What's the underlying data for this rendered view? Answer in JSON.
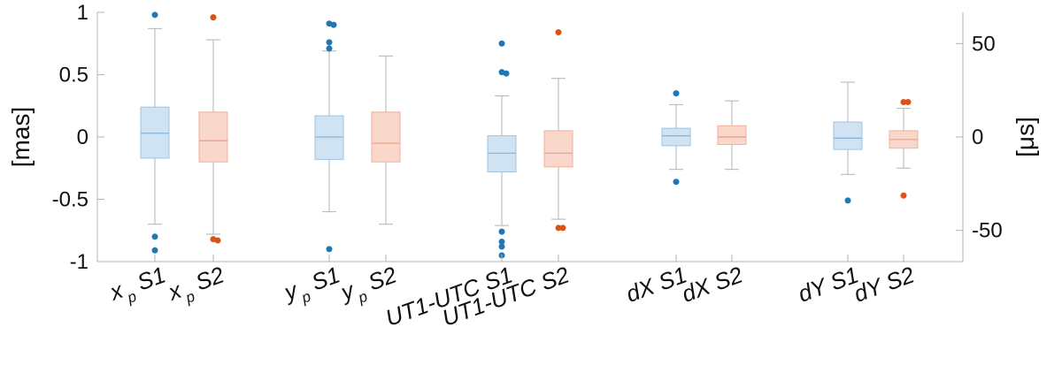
{
  "chart_data": {
    "type": "box",
    "ylabel_left": "[mas]",
    "ylabel_right": "[μs]",
    "ylim_left": [
      -1,
      1
    ],
    "ylim_right": [
      -66.7,
      66.7
    ],
    "yticks_left": [
      "1",
      "0.5",
      "0",
      "-0.5",
      "-1"
    ],
    "yticks_right": [
      "50",
      "0",
      "-50"
    ],
    "grid": false,
    "categories": [
      {
        "main": "x",
        "sub": "p",
        "tail": " S1"
      },
      {
        "main": "x",
        "sub": "p",
        "tail": " S2"
      },
      {
        "main": "y",
        "sub": "p",
        "tail": " S1"
      },
      {
        "main": "y",
        "sub": "p",
        "tail": " S2"
      },
      {
        "main": "UT1-UTC S1",
        "sub": "",
        "tail": ""
      },
      {
        "main": "UT1-UTC S2",
        "sub": "",
        "tail": ""
      },
      {
        "main": "dX S1",
        "sub": "",
        "tail": ""
      },
      {
        "main": "dX S2",
        "sub": "",
        "tail": ""
      },
      {
        "main": "dY S1",
        "sub": "",
        "tail": ""
      },
      {
        "main": "dY S2",
        "sub": "",
        "tail": ""
      }
    ],
    "colors": {
      "S1_fill": "#cfe3f3",
      "S1_edge": "#9ec3e2",
      "S1_median": "#86b4da",
      "S1_outlier": "#1f77b4",
      "S2_fill": "#f9d8cb",
      "S2_edge": "#f0b29b",
      "S2_median": "#eb9c80",
      "S2_outlier": "#d95319",
      "whisker": "#b3b3b3",
      "axis": "#b3b3b3"
    },
    "boxes": [
      {
        "series": "S1",
        "q1": -0.17,
        "median": 0.03,
        "q3": 0.24,
        "whisker_low": -0.7,
        "whisker_high": 0.87,
        "outliers": [
          0.98,
          -0.8,
          -0.91
        ]
      },
      {
        "series": "S2",
        "q1": -0.2,
        "median": -0.03,
        "q3": 0.2,
        "whisker_low": -0.78,
        "whisker_high": 0.78,
        "outliers": [
          0.96,
          -0.82,
          -0.83
        ]
      },
      {
        "series": "S1",
        "q1": -0.18,
        "median": 0.0,
        "q3": 0.17,
        "whisker_low": -0.6,
        "whisker_high": 0.69,
        "outliers": [
          0.91,
          0.9,
          0.76,
          0.71,
          -0.9
        ]
      },
      {
        "series": "S2",
        "q1": -0.2,
        "median": -0.05,
        "q3": 0.2,
        "whisker_low": -0.7,
        "whisker_high": 0.65,
        "outliers": []
      },
      {
        "series": "S1",
        "q1": -0.28,
        "median": -0.13,
        "q3": 0.01,
        "whisker_low": -0.71,
        "whisker_high": 0.33,
        "outliers": [
          0.75,
          0.52,
          0.51,
          -0.76,
          -0.84,
          -0.88,
          -0.95
        ]
      },
      {
        "series": "S2",
        "q1": -0.24,
        "median": -0.13,
        "q3": 0.05,
        "whisker_low": -0.66,
        "whisker_high": 0.47,
        "outliers": [
          0.84,
          -0.73,
          -0.73
        ]
      },
      {
        "series": "S1",
        "q1": -0.07,
        "median": 0.01,
        "q3": 0.07,
        "whisker_low": -0.26,
        "whisker_high": 0.26,
        "outliers": [
          0.35,
          -0.36
        ]
      },
      {
        "series": "S2",
        "q1": -0.06,
        "median": 0.0,
        "q3": 0.09,
        "whisker_low": -0.26,
        "whisker_high": 0.29,
        "outliers": []
      },
      {
        "series": "S1",
        "q1": -0.1,
        "median": -0.01,
        "q3": 0.12,
        "whisker_low": -0.3,
        "whisker_high": 0.44,
        "outliers": [
          -0.51
        ]
      },
      {
        "series": "S2",
        "q1": -0.09,
        "median": -0.02,
        "q3": 0.05,
        "whisker_low": -0.25,
        "whisker_high": 0.23,
        "outliers": [
          0.28,
          0.28,
          -0.47
        ]
      }
    ]
  }
}
